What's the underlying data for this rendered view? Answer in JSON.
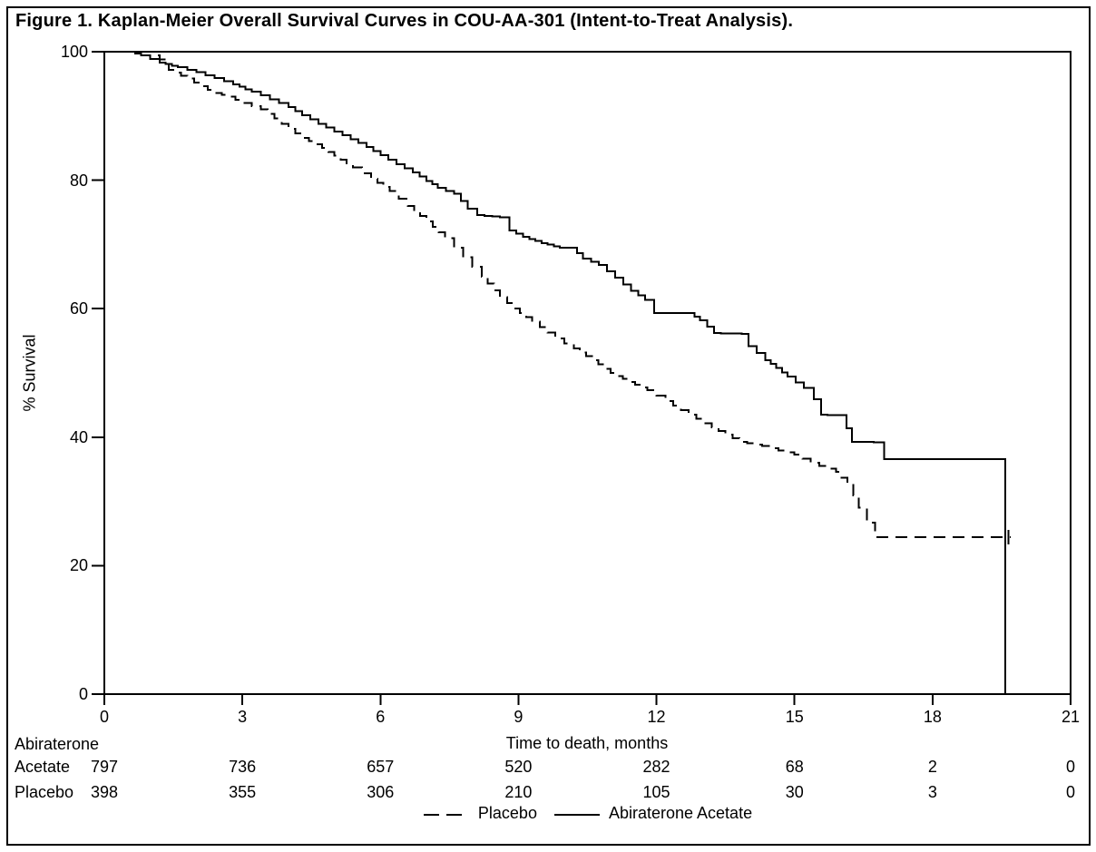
{
  "chart_data": {
    "type": "line",
    "subtype": "kaplan_meier_step",
    "title": "Figure 1. Kaplan-Meier Overall Survival Curves in COU-AA-301 (Intent-to-Treat Analysis).",
    "xlabel": "Time to death, months",
    "ylabel": "% Survival",
    "xlim": [
      0,
      21
    ],
    "ylim": [
      0,
      100
    ],
    "xticks": [
      0,
      3,
      6,
      9,
      12,
      15,
      18,
      21
    ],
    "yticks": [
      0,
      20,
      40,
      60,
      80,
      100
    ],
    "grid": false,
    "frame": true,
    "line_color": "#000000",
    "background_color": "#ffffff",
    "legend_position": "bottom-center",
    "series": [
      {
        "name": "Abiraterone Acetate",
        "line_style": "solid",
        "color": "#000000",
        "points": [
          [
            0,
            100
          ],
          [
            0.55,
            100
          ],
          [
            0.8,
            99.4
          ],
          [
            1.2,
            98.3
          ],
          [
            1.6,
            97.6
          ],
          [
            2.0,
            96.8
          ],
          [
            2.4,
            95.9
          ],
          [
            2.8,
            94.9
          ],
          [
            3.2,
            93.8
          ],
          [
            3.6,
            92.6
          ],
          [
            4.0,
            91.4
          ],
          [
            4.3,
            90.1
          ],
          [
            4.65,
            88.8
          ],
          [
            5.0,
            87.6
          ],
          [
            5.35,
            86.4
          ],
          [
            5.7,
            85.2
          ],
          [
            6.0,
            83.9
          ],
          [
            6.35,
            82.5
          ],
          [
            6.7,
            81.2
          ],
          [
            7.0,
            79.9
          ],
          [
            7.25,
            78.8
          ],
          [
            7.6,
            77.9
          ],
          [
            7.9,
            75.6
          ],
          [
            8.1,
            74.6
          ],
          [
            8.6,
            74.2
          ],
          [
            8.8,
            72.2
          ],
          [
            9.1,
            71.2
          ],
          [
            9.5,
            70.2
          ],
          [
            9.9,
            69.5
          ],
          [
            10.15,
            69.5
          ],
          [
            10.4,
            67.8
          ],
          [
            10.75,
            66.8
          ],
          [
            11.1,
            64.8
          ],
          [
            11.45,
            62.8
          ],
          [
            11.75,
            61.4
          ],
          [
            11.95,
            59.3
          ],
          [
            12.7,
            59.3
          ],
          [
            12.95,
            58.2
          ],
          [
            13.25,
            56.2
          ],
          [
            13.85,
            56.1
          ],
          [
            14.0,
            54.2
          ],
          [
            14.36,
            52.0
          ],
          [
            14.6,
            50.8
          ],
          [
            14.85,
            49.4
          ],
          [
            15.2,
            47.7
          ],
          [
            15.42,
            45.9
          ],
          [
            15.58,
            43.5
          ],
          [
            16.0,
            43.4
          ],
          [
            16.25,
            39.3
          ],
          [
            16.88,
            39.2
          ],
          [
            16.95,
            36.6
          ],
          [
            19.58,
            36.6
          ],
          [
            19.58,
            0
          ]
        ]
      },
      {
        "name": "Placebo",
        "line_style": "dashed",
        "color": "#000000",
        "points": [
          [
            0,
            100
          ],
          [
            0.95,
            100
          ],
          [
            1.2,
            98.8
          ],
          [
            1.4,
            97.2
          ],
          [
            1.8,
            95.8
          ],
          [
            2.1,
            94.6
          ],
          [
            2.4,
            93.6
          ],
          [
            2.7,
            93.0
          ],
          [
            3.0,
            92.0
          ],
          [
            3.4,
            91.0
          ],
          [
            3.7,
            89.6
          ],
          [
            4.0,
            88.0
          ],
          [
            4.3,
            86.6
          ],
          [
            4.6,
            85.6
          ],
          [
            5.0,
            83.8
          ],
          [
            5.4,
            82.0
          ],
          [
            5.8,
            80.2
          ],
          [
            6.2,
            78.3
          ],
          [
            6.6,
            76.0
          ],
          [
            7.0,
            73.6
          ],
          [
            7.4,
            71.0
          ],
          [
            7.8,
            68.0
          ],
          [
            8.2,
            65.0
          ],
          [
            8.6,
            61.8
          ],
          [
            8.9,
            60.0
          ],
          [
            9.3,
            58.0
          ],
          [
            9.8,
            55.4
          ],
          [
            10.2,
            53.8
          ],
          [
            10.6,
            52.0
          ],
          [
            11.0,
            50.0
          ],
          [
            11.4,
            48.6
          ],
          [
            11.8,
            47.3
          ],
          [
            12.2,
            45.6
          ],
          [
            12.7,
            43.5
          ],
          [
            13.2,
            41.5
          ],
          [
            13.8,
            39.3
          ],
          [
            14.3,
            38.6
          ],
          [
            15.0,
            37.3
          ],
          [
            15.35,
            36.0
          ],
          [
            15.9,
            34.6
          ],
          [
            16.15,
            32.8
          ],
          [
            16.4,
            29.0
          ],
          [
            16.75,
            24.4
          ],
          [
            19.7,
            24.4
          ]
        ],
        "censor_marks": [
          [
            19.65,
            24.4
          ]
        ]
      }
    ],
    "number_at_risk": {
      "times": [
        0,
        3,
        6,
        9,
        12,
        15,
        18,
        21
      ],
      "rows": [
        {
          "label_lines": [
            "Abiraterone",
            "Acetate"
          ],
          "counts": [
            797,
            736,
            657,
            520,
            282,
            68,
            2,
            0
          ]
        },
        {
          "label_lines": [
            "Placebo"
          ],
          "counts": [
            398,
            355,
            306,
            210,
            105,
            30,
            3,
            0
          ]
        }
      ]
    },
    "legend": [
      {
        "label": "Placebo",
        "line_style": "dashed"
      },
      {
        "label": "Abiraterone Acetate",
        "line_style": "solid"
      }
    ]
  }
}
